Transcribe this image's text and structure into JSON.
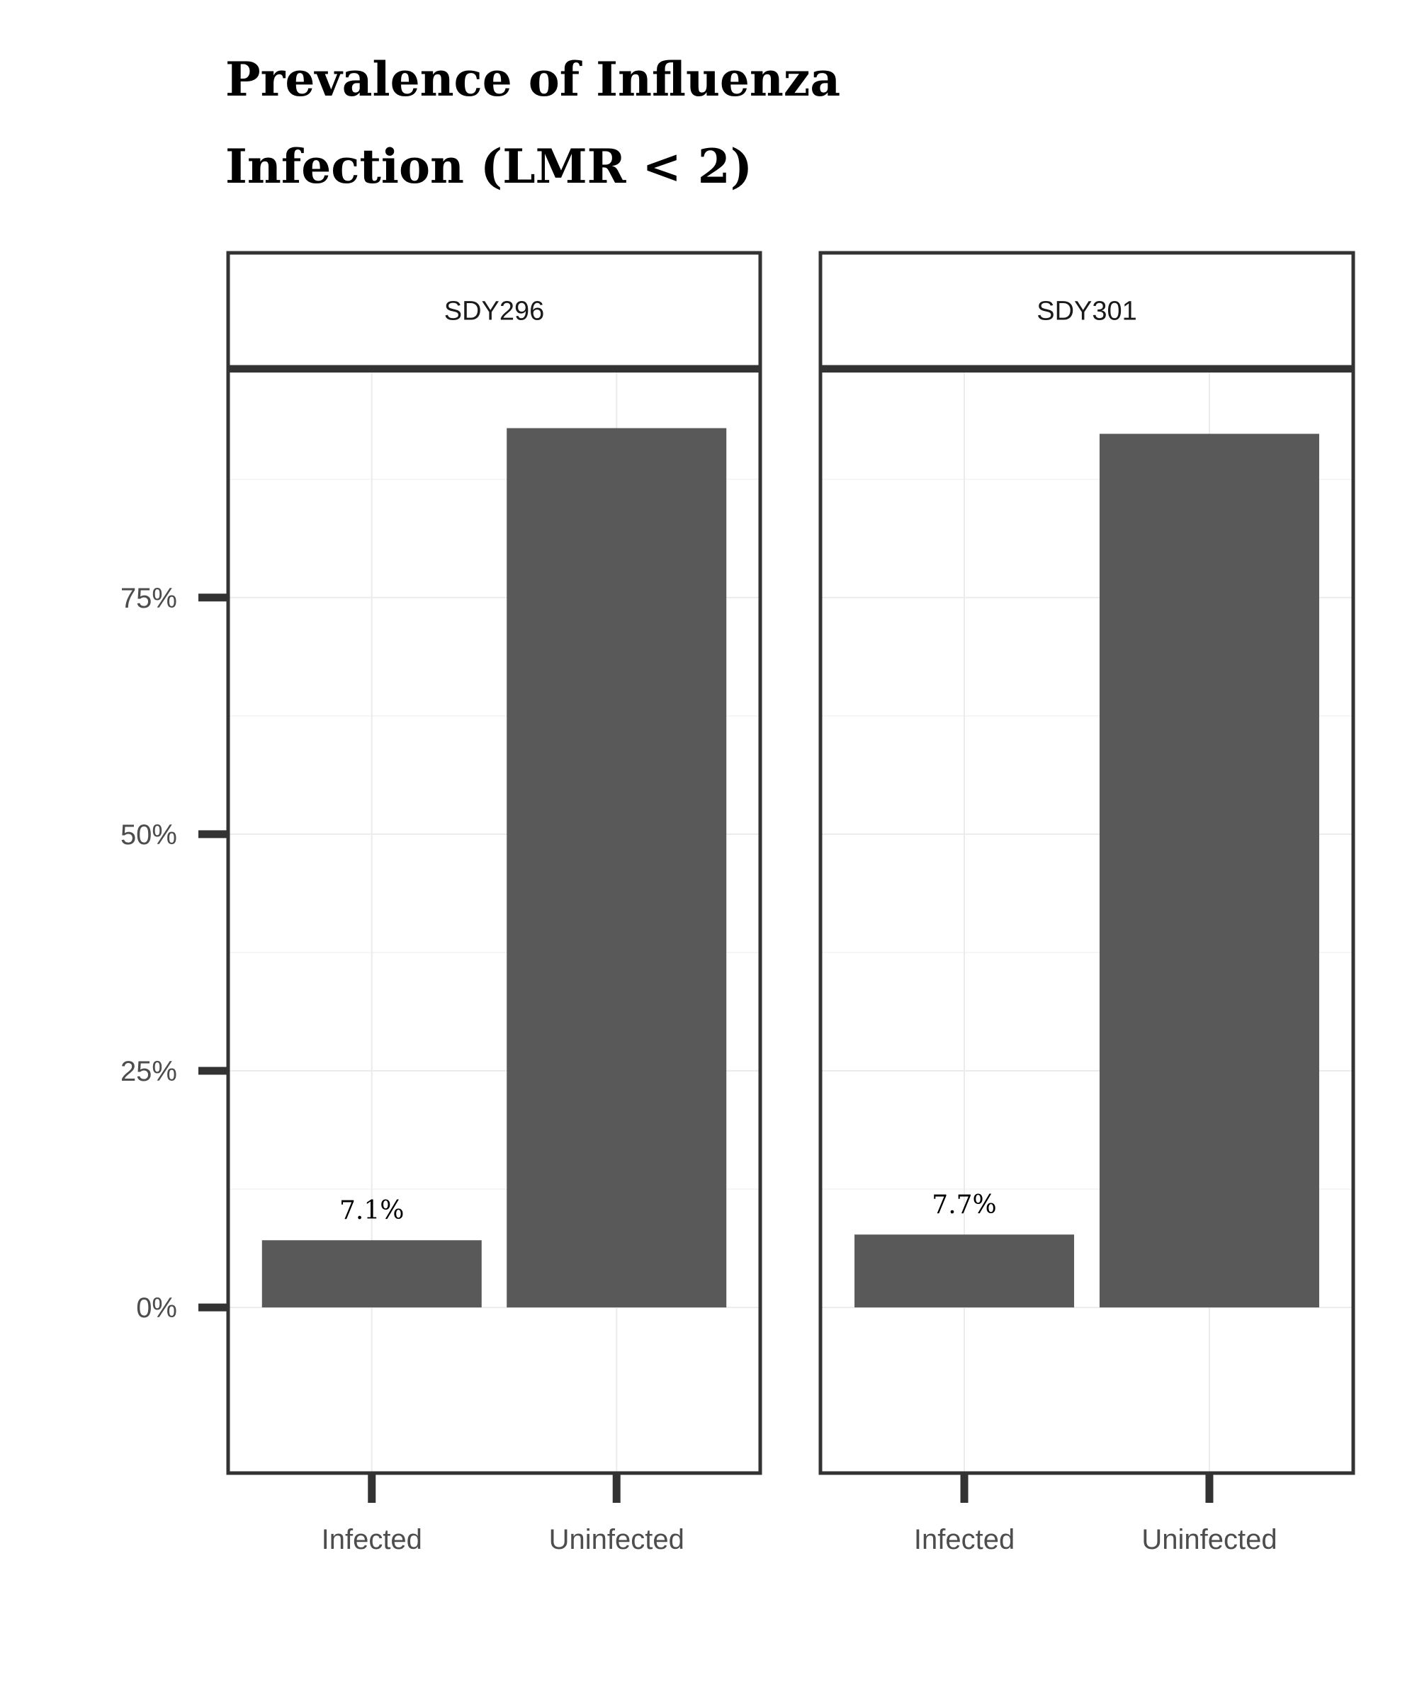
{
  "title_lines": [
    "Prevalence of Influenza",
    "Infection (LMR < 2)"
  ],
  "chart_data": {
    "type": "bar",
    "title": "Prevalence of Influenza Infection (LMR < 2)",
    "xlabel": "",
    "ylabel": "",
    "ylim": [
      -0.175,
      0.99
    ],
    "y_ticks": [
      0,
      0.25,
      0.5,
      0.75
    ],
    "y_tick_labels": [
      "0%",
      "25%",
      "50%",
      "75%"
    ],
    "categories": [
      "Infected",
      "Uninfected"
    ],
    "facets": [
      {
        "name": "SDY296",
        "values": [
          0.071,
          0.929
        ],
        "labels": [
          "7.1%",
          ""
        ]
      },
      {
        "name": "SDY301",
        "values": [
          0.077,
          0.923
        ],
        "labels": [
          "7.7%",
          ""
        ]
      }
    ],
    "grid": true,
    "legend": "none",
    "colors": {
      "bar": "#595959",
      "panel_border": "#333333",
      "grid": "#ebebeb"
    }
  }
}
